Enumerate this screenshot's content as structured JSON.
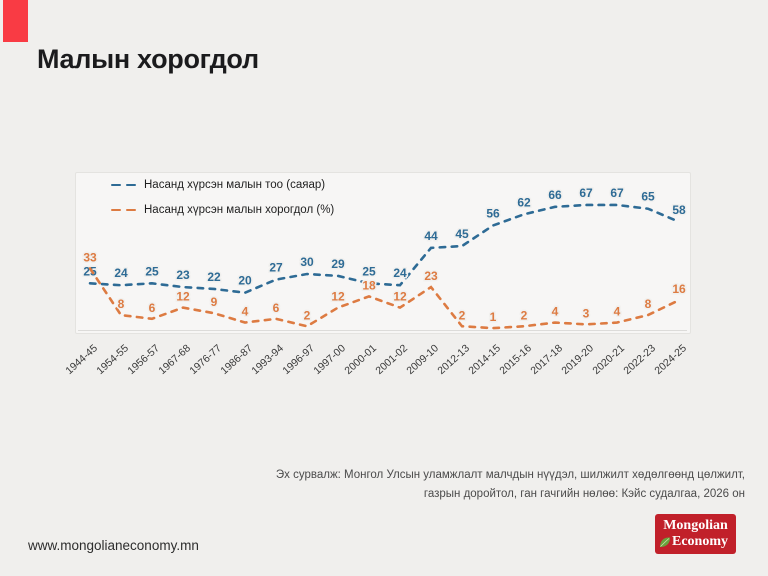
{
  "page": {
    "title": "Малын хорогдол",
    "footer_url": "www.mongolianeconomy.mn",
    "source_line1": "Эх сурвалж: Монгол Улсын уламжлалт малчдын нүүдэл, шилжилт хөдөлгөөнд цөлжилт,",
    "source_line2": "газрын доройтол, ган гачгийн нөлөө: Кэйс судалгаа, 2026 он"
  },
  "logo": {
    "line1": "Mongolian",
    "line2": "Economy"
  },
  "colors": {
    "accent_red": "#f93b44",
    "logo_red": "#c1202a",
    "leaf_green": "#6aa23c",
    "count_series_blue": "#2e6b95",
    "loss_series_orange": "#dd7b42",
    "axis_gray": "#dcdbd9"
  },
  "chart_data": {
    "type": "line",
    "line_style": "dashed",
    "grid": false,
    "legend_position": "top-left",
    "labels_on_points": true,
    "ylim": [
      0,
      70
    ],
    "categories": [
      "1944-45",
      "1954-55",
      "1956-57",
      "1967-68",
      "1976-77",
      "1986-87",
      "1993-94",
      "1996-97",
      "1997-00",
      "2000-01",
      "2001-02",
      "2009-10",
      "2012-13",
      "2014-15",
      "2015-16",
      "2017-18",
      "2019-20",
      "2020-21",
      "2022-23",
      "2024-25"
    ],
    "series": [
      {
        "name": "Насанд хүрсэн малын тоо (саяар)",
        "color": "#2e6b95",
        "values": [
          25,
          24,
          25,
          23,
          22,
          20,
          27,
          30,
          29,
          25,
          24,
          44,
          45,
          56,
          62,
          66,
          67,
          67,
          65,
          58
        ]
      },
      {
        "name": "Насанд хүрсэн малын хорогдол (%)",
        "color": "#dd7b42",
        "values": [
          33,
          8,
          6,
          12,
          9,
          4,
          6,
          2,
          12,
          18,
          12,
          23,
          2,
          1,
          2,
          4,
          3,
          4,
          8,
          16
        ]
      }
    ]
  }
}
